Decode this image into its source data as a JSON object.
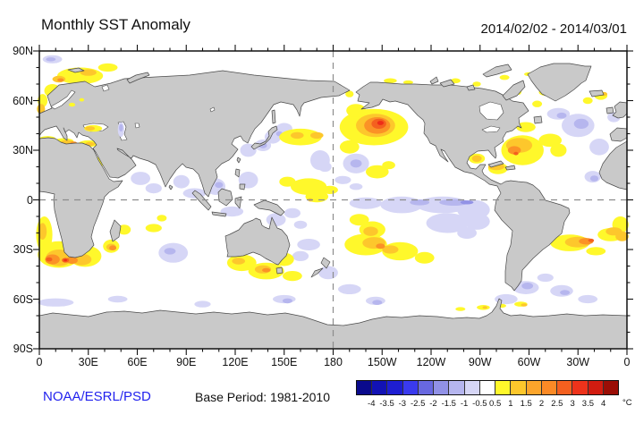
{
  "header": {
    "title": "Monthly SST Anomaly",
    "date_range": "2014/02/02 - 2014/03/01"
  },
  "footer": {
    "source": "NOAA/ESRL/PSD",
    "source_color": "#2222EE",
    "base_period": "Base Period: 1981-2010"
  },
  "axes": {
    "lon_ticks": [
      {
        "deg": 0,
        "label": "0"
      },
      {
        "deg": 30,
        "label": "30E"
      },
      {
        "deg": 60,
        "label": "60E"
      },
      {
        "deg": 90,
        "label": "90E"
      },
      {
        "deg": 120,
        "label": "120E"
      },
      {
        "deg": 150,
        "label": "150E"
      },
      {
        "deg": 180,
        "label": "180"
      },
      {
        "deg": 210,
        "label": "150W"
      },
      {
        "deg": 240,
        "label": "120W"
      },
      {
        "deg": 270,
        "label": "90W"
      },
      {
        "deg": 300,
        "label": "60W"
      },
      {
        "deg": 330,
        "label": "30W"
      },
      {
        "deg": 360,
        "label": "0"
      }
    ],
    "lat_ticks": [
      {
        "deg": 90,
        "label": "90N"
      },
      {
        "deg": 60,
        "label": "60N"
      },
      {
        "deg": 30,
        "label": "30N"
      },
      {
        "deg": 0,
        "label": "0"
      },
      {
        "deg": -30,
        "label": "30S"
      },
      {
        "deg": -60,
        "label": "60S"
      },
      {
        "deg": -90,
        "label": "90S"
      }
    ],
    "minor_step_deg": 10,
    "major_step_deg": 30
  },
  "colorbar": {
    "unit": "°C",
    "boundary_labels": [
      "-4",
      "-3.5",
      "-3",
      "-2.5",
      "-2",
      "-1.5",
      "-1",
      "-0.5",
      "0.5",
      "1",
      "1.5",
      "2",
      "2.5",
      "3",
      "3.5",
      "4"
    ],
    "colors": [
      "#0A0A8C",
      "#1212B4",
      "#1E1ED2",
      "#3A3AEE",
      "#6868E0",
      "#9191E6",
      "#B5B5EE",
      "#D6D6F6",
      "#FFFFFF",
      "#FFF82B",
      "#FDC72C",
      "#FCA52B",
      "#FB8A26",
      "#F4601F",
      "#EE331B",
      "#D21C10",
      "#9B0E06"
    ]
  },
  "map": {
    "projection": "equirectangular 0E-360E, 90N-90S",
    "land_color": "#C9C9C9",
    "coast_color": "#4A4A4A",
    "ocean_color": "#FFFFFF",
    "grid_dash_color": "#8C8C8C",
    "dashed_equator_lat": 0,
    "dashed_meridian_lon": 180,
    "anomaly_levels": {
      "w1": "#FFF82B",
      "w2": "#FDC72C",
      "w3": "#FB9226",
      "w4": "#F4601F",
      "w5": "#EE2D18",
      "c1": "#D6D6F6",
      "c2": "#B6B6EE",
      "c3": "#9292E6"
    },
    "anomaly_blobs": [
      [
        8,
        85,
        6,
        2.5,
        "c1"
      ],
      [
        7,
        85,
        3,
        1.2,
        "c2"
      ],
      [
        25,
        75,
        14,
        5,
        "w1"
      ],
      [
        12,
        73,
        4,
        2,
        "w2"
      ],
      [
        30,
        77,
        5,
        2,
        "w2"
      ],
      [
        13,
        72.5,
        2,
        1,
        "w3"
      ],
      [
        42,
        80,
        6,
        2.5,
        "w1"
      ],
      [
        8,
        66,
        5,
        4,
        "w1"
      ],
      [
        2,
        60,
        3,
        4,
        "w1"
      ],
      [
        1,
        55,
        2.5,
        3,
        "w2"
      ],
      [
        5,
        37,
        5,
        1.6,
        "w1"
      ],
      [
        15,
        35.5,
        6,
        1.8,
        "w1"
      ],
      [
        17,
        35,
        4,
        1.2,
        "w2"
      ],
      [
        30,
        34,
        6,
        2,
        "w1"
      ],
      [
        31,
        33.8,
        3,
        1.2,
        "w2"
      ],
      [
        21,
        34.5,
        2,
        0.8,
        "w3"
      ],
      [
        37,
        22,
        1.8,
        5,
        "w1"
      ],
      [
        51,
        27,
        3,
        1.5,
        "w1"
      ],
      [
        62,
        13,
        6,
        4,
        "c1"
      ],
      [
        70,
        7,
        5,
        3,
        "c1"
      ],
      [
        87,
        11,
        5,
        4,
        "c1"
      ],
      [
        95,
        4,
        7,
        3,
        "c1"
      ],
      [
        108,
        8,
        6,
        5,
        "c1"
      ],
      [
        110,
        9,
        2.5,
        1.8,
        "c2"
      ],
      [
        118,
        -7,
        7,
        3,
        "c1"
      ],
      [
        128,
        12,
        6,
        5,
        "c1"
      ],
      [
        128,
        30,
        5,
        4,
        "c1"
      ],
      [
        137,
        33,
        5,
        3.5,
        "c1"
      ],
      [
        137,
        33,
        2.5,
        1.8,
        "c2"
      ],
      [
        143,
        38,
        5,
        4,
        "c1"
      ],
      [
        150,
        43,
        5,
        3.5,
        "c1"
      ],
      [
        147,
        40,
        2,
        1.5,
        "c2"
      ],
      [
        126,
        40,
        2,
        3,
        "w1"
      ],
      [
        160,
        38,
        13,
        5,
        "w1"
      ],
      [
        158,
        39,
        4,
        2,
        "w2"
      ],
      [
        170,
        39,
        4,
        2,
        "w2"
      ],
      [
        172,
        24,
        6,
        6,
        "c1"
      ],
      [
        175,
        20,
        4,
        3,
        "c1"
      ],
      [
        165,
        8,
        11,
        5,
        "w1"
      ],
      [
        152,
        11,
        5,
        3,
        "w1"
      ],
      [
        170,
        2,
        7,
        3.5,
        "w1"
      ],
      [
        178,
        6,
        5,
        2.5,
        "w1"
      ],
      [
        166,
        0,
        1.5,
        1,
        "w2"
      ],
      [
        205,
        44,
        21,
        11,
        "w1"
      ],
      [
        194,
        54,
        6,
        4,
        "w1"
      ],
      [
        190,
        32,
        6,
        4,
        "w1"
      ],
      [
        206,
        45,
        12,
        7,
        "w2"
      ],
      [
        207,
        45,
        8,
        5,
        "w3"
      ],
      [
        208,
        46,
        4.5,
        3,
        "w4"
      ],
      [
        209,
        46.5,
        2,
        1.3,
        "w5"
      ],
      [
        194,
        22,
        8,
        6,
        "c1"
      ],
      [
        194,
        22,
        3.5,
        2.5,
        "c2"
      ],
      [
        207,
        17,
        7,
        4,
        "w1"
      ],
      [
        214,
        21,
        4,
        2.5,
        "w1"
      ],
      [
        215,
        72,
        4,
        1.5,
        "w1"
      ],
      [
        226,
        71,
        3,
        1.2,
        "w1"
      ],
      [
        190,
        64,
        2.5,
        2,
        "w1"
      ],
      [
        200,
        -2,
        10,
        3.5,
        "c1"
      ],
      [
        222,
        -3,
        13,
        5,
        "c1"
      ],
      [
        247,
        -3,
        16,
        5,
        "c1"
      ],
      [
        266,
        -6,
        10,
        6,
        "c1"
      ],
      [
        233,
        -1.5,
        6,
        1.8,
        "c2"
      ],
      [
        254,
        -1.5,
        9,
        2,
        "c2"
      ],
      [
        262,
        -1.5,
        4,
        1.2,
        "c3"
      ],
      [
        250,
        -14,
        13,
        6,
        "c1"
      ],
      [
        268,
        -13,
        8,
        5,
        "c1"
      ],
      [
        262,
        -20,
        6,
        3.5,
        "c1"
      ],
      [
        186,
        12,
        5,
        2.5,
        "c1"
      ],
      [
        194,
        8,
        4,
        2,
        "c1"
      ],
      [
        196,
        -12,
        6,
        3.5,
        "w1"
      ],
      [
        204,
        -18,
        8,
        5,
        "w1"
      ],
      [
        203,
        -19,
        4.5,
        2.8,
        "w2"
      ],
      [
        200,
        -27,
        13,
        6.5,
        "w1"
      ],
      [
        221,
        -31,
        11,
        5.5,
        "w1"
      ],
      [
        205,
        -26,
        7,
        3.5,
        "w2"
      ],
      [
        215,
        -30,
        5,
        2.5,
        "w2"
      ],
      [
        209,
        -28,
        2.8,
        1.6,
        "w3"
      ],
      [
        236,
        -35,
        6,
        3.5,
        "w1"
      ],
      [
        177,
        -44,
        6,
        4,
        "c1"
      ],
      [
        190,
        -54,
        7,
        3,
        "c1"
      ],
      [
        206,
        -61,
        6,
        2.5,
        "c1"
      ],
      [
        207,
        -62,
        3,
        1.5,
        "c2"
      ],
      [
        165,
        -27,
        7,
        3.5,
        "c1"
      ],
      [
        160,
        -34,
        5,
        3,
        "c1"
      ],
      [
        298,
        -53,
        8,
        4,
        "c1"
      ],
      [
        299,
        -52,
        3.5,
        2,
        "c2"
      ],
      [
        286,
        -60,
        7,
        3,
        "c1"
      ],
      [
        320,
        -55,
        7,
        3.5,
        "c1"
      ],
      [
        322,
        -56,
        3,
        1.5,
        "c2"
      ],
      [
        336,
        -60,
        6,
        2.5,
        "c1"
      ],
      [
        310,
        -47,
        5,
        2.5,
        "c1"
      ],
      [
        325,
        -26,
        12,
        5,
        "w1"
      ],
      [
        330,
        -25.5,
        8,
        3.2,
        "w2"
      ],
      [
        335,
        -25,
        4.5,
        2,
        "w3"
      ],
      [
        338,
        -24.5,
        1.8,
        1,
        "w4"
      ],
      [
        350,
        -21,
        8,
        4,
        "w1"
      ],
      [
        352,
        -19,
        5,
        2.5,
        "w2"
      ],
      [
        341,
        -31,
        6,
        2.5,
        "w1"
      ],
      [
        356,
        -15,
        5,
        5,
        "w1"
      ],
      [
        357,
        -22,
        4,
        3,
        "w2"
      ],
      [
        305,
        -4,
        8,
        3,
        "c1"
      ],
      [
        296,
        -3,
        4,
        2,
        "c1"
      ],
      [
        3,
        -21,
        5,
        11,
        "w1"
      ],
      [
        2,
        -19,
        2.5,
        5,
        "w2"
      ],
      [
        12,
        -33,
        13,
        8,
        "w1"
      ],
      [
        28,
        -34,
        10,
        6.5,
        "w1"
      ],
      [
        12,
        -35,
        8,
        5,
        "w2"
      ],
      [
        26,
        -36,
        6,
        3.5,
        "w2"
      ],
      [
        8,
        -36,
        4.5,
        3,
        "w3"
      ],
      [
        20,
        -36.5,
        3.5,
        2.2,
        "w3"
      ],
      [
        6,
        -36,
        2,
        1.3,
        "w4"
      ],
      [
        16,
        -36.5,
        2.2,
        1.4,
        "w4"
      ],
      [
        16,
        -36.5,
        1,
        0.7,
        "w5"
      ],
      [
        44,
        -28,
        5,
        4,
        "w1"
      ],
      [
        44,
        -28.5,
        3,
        2,
        "w2"
      ],
      [
        45,
        -29,
        2.2,
        1.5,
        "w3"
      ],
      [
        52,
        -18,
        4,
        3,
        "w1"
      ],
      [
        70,
        -17,
        5,
        2.5,
        "w1"
      ],
      [
        75,
        -11,
        3,
        2,
        "w1"
      ],
      [
        82,
        -32,
        9,
        6,
        "c1"
      ],
      [
        80,
        -31,
        3.5,
        2,
        "c2"
      ],
      [
        100,
        -63,
        5,
        2,
        "c1"
      ],
      [
        10,
        -62,
        11,
        2.5,
        "c1"
      ],
      [
        48,
        -60,
        6,
        2,
        "c1"
      ],
      [
        150,
        -60,
        7,
        2.5,
        "c1"
      ],
      [
        152,
        -61,
        3,
        1.5,
        "c2"
      ],
      [
        124,
        -38,
        9,
        5,
        "w1"
      ],
      [
        139,
        -43,
        11,
        5,
        "w1"
      ],
      [
        122,
        -37,
        4,
        2,
        "w2"
      ],
      [
        137,
        -42,
        5,
        2.5,
        "w2"
      ],
      [
        139,
        -42.5,
        2.5,
        1.3,
        "w3"
      ],
      [
        150,
        -36,
        6,
        4,
        "w1"
      ],
      [
        122,
        -27,
        4,
        2.5,
        "w1"
      ],
      [
        155,
        -46,
        6,
        3,
        "w1"
      ],
      [
        145,
        -12,
        6,
        4,
        "c1"
      ],
      [
        155,
        -8,
        5,
        3,
        "c1"
      ],
      [
        160,
        -15,
        4,
        2.5,
        "c1"
      ],
      [
        296,
        30,
        13,
        9,
        "w1"
      ],
      [
        294,
        33,
        8,
        4.5,
        "w2"
      ],
      [
        291,
        30,
        4,
        2.5,
        "w3"
      ],
      [
        292,
        28,
        1.5,
        1,
        "w4"
      ],
      [
        281,
        19,
        6,
        3.5,
        "w1"
      ],
      [
        280,
        20,
        5,
        2,
        "w2"
      ],
      [
        268,
        25,
        5,
        3,
        "w1"
      ],
      [
        268,
        25,
        3,
        2,
        "w2"
      ],
      [
        298,
        44,
        6,
        3,
        "w1"
      ],
      [
        313,
        36,
        7,
        4,
        "w1"
      ],
      [
        318,
        30,
        5,
        4,
        "w1"
      ],
      [
        330,
        45,
        10,
        7,
        "c1"
      ],
      [
        332,
        46,
        4.5,
        3,
        "c2"
      ],
      [
        343,
        32,
        6,
        5,
        "c1"
      ],
      [
        339,
        14,
        5,
        3.5,
        "c1"
      ],
      [
        340,
        13,
        2.5,
        1.8,
        "c2"
      ],
      [
        318,
        52,
        7,
        3.5,
        "c1"
      ],
      [
        320,
        51,
        3,
        1.8,
        "c2"
      ],
      [
        352,
        50,
        4,
        3,
        "c1"
      ],
      [
        310,
        65,
        4,
        2,
        "w1"
      ],
      [
        336,
        60,
        3,
        2,
        "w1"
      ],
      [
        344,
        63,
        4,
        2.5,
        "w1"
      ],
      [
        346,
        64,
        2,
        1.2,
        "w2"
      ],
      [
        300,
        76,
        3,
        1.2,
        "w1"
      ],
      [
        285,
        74,
        3,
        1.5,
        "w1"
      ],
      [
        268,
        70,
        2.5,
        1.5,
        "w1"
      ],
      [
        255,
        72,
        3,
        1.5,
        "w1"
      ],
      [
        294,
        66,
        1.5,
        2.5,
        "w1"
      ],
      [
        293,
        65,
        1,
        0.8,
        "w3"
      ],
      [
        305,
        58,
        3,
        2,
        "w1"
      ],
      [
        295,
        -63,
        4,
        1.5,
        "w1"
      ],
      [
        297,
        -63.5,
        2,
        0.9,
        "w2"
      ],
      [
        283,
        -64,
        3,
        1.2,
        "w1"
      ],
      [
        272,
        -65,
        4,
        1.5,
        "w1"
      ],
      [
        273,
        -65,
        1.5,
        0.8,
        "w2"
      ],
      [
        258,
        -66,
        3,
        1.2,
        "w1"
      ]
    ],
    "inland_blobs": [
      [
        33,
        43.2,
        5.5,
        2,
        "w1"
      ],
      [
        31,
        43.2,
        3,
        1.3,
        "w2"
      ],
      [
        50,
        42.5,
        2,
        4.5,
        "c1"
      ],
      [
        50,
        43.5,
        1.2,
        2.2,
        "c2"
      ],
      [
        20,
        57.5,
        2,
        1.2,
        "w1"
      ],
      [
        26,
        60.5,
        1.5,
        1,
        "w1"
      ]
    ]
  }
}
